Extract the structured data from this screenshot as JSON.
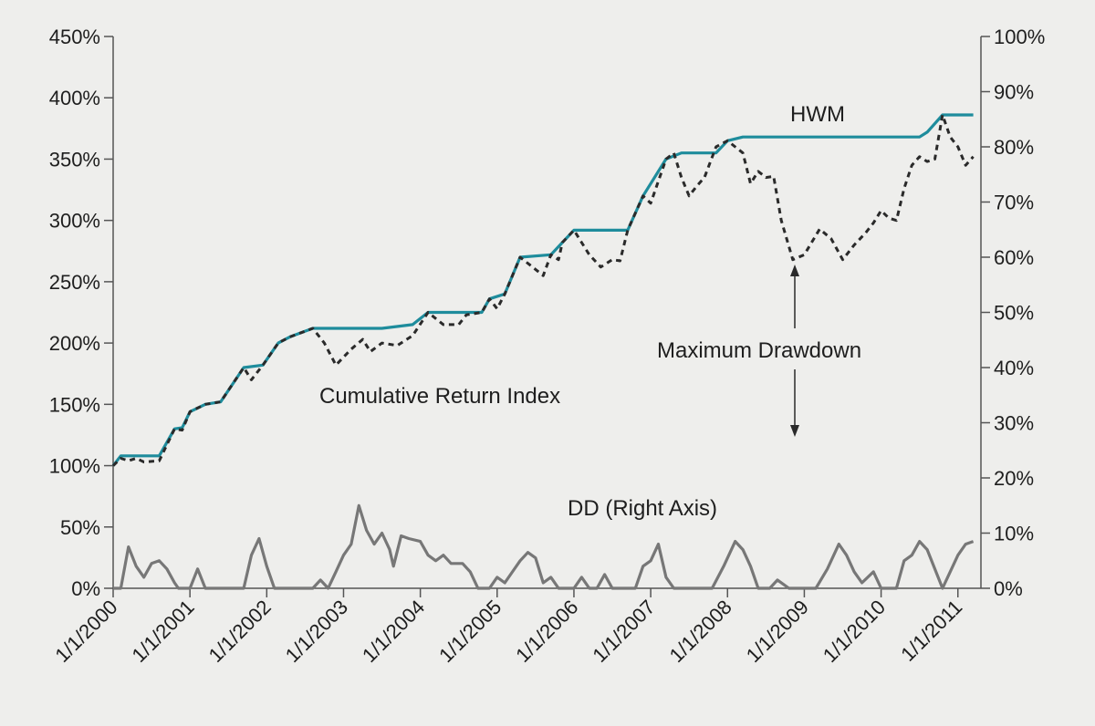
{
  "chart_data": {
    "type": "line",
    "x_tick_labels": [
      "1/1/2000",
      "1/1/2001",
      "1/1/2002",
      "1/1/2003",
      "1/1/2004",
      "1/1/2005",
      "1/1/2006",
      "1/1/2007",
      "1/1/2008",
      "1/1/2009",
      "1/1/2010",
      "1/1/2011"
    ],
    "x_tick_years": [
      2000,
      2001,
      2002,
      2003,
      2004,
      2005,
      2006,
      2007,
      2008,
      2009,
      2010,
      2011
    ],
    "xlim": [
      2000,
      2011.3
    ],
    "left_axis": {
      "ylim": [
        0,
        450
      ],
      "ticks": [
        0,
        50,
        100,
        150,
        200,
        250,
        300,
        350,
        400,
        450
      ],
      "tick_labels": [
        "0%",
        "50%",
        "100%",
        "150%",
        "200%",
        "250%",
        "300%",
        "350%",
        "400%",
        "450%"
      ]
    },
    "right_axis": {
      "ylim": [
        0,
        100
      ],
      "ticks": [
        0,
        10,
        20,
        30,
        40,
        50,
        60,
        70,
        80,
        90,
        100
      ],
      "tick_labels": [
        "0%",
        "10%",
        "20%",
        "30%",
        "40%",
        "50%",
        "60%",
        "70%",
        "80%",
        "90%",
        "100%"
      ]
    },
    "series": [
      {
        "name": "HWM",
        "axis": "left",
        "color": "#1e8c9c",
        "style": "solid",
        "points": [
          [
            2000.0,
            100
          ],
          [
            2000.1,
            108
          ],
          [
            2000.6,
            108
          ],
          [
            2000.8,
            130
          ],
          [
            2000.9,
            131
          ],
          [
            2001.0,
            144
          ],
          [
            2001.2,
            150
          ],
          [
            2001.4,
            152
          ],
          [
            2001.7,
            180
          ],
          [
            2001.95,
            182
          ],
          [
            2002.15,
            200
          ],
          [
            2002.3,
            205
          ],
          [
            2002.6,
            212
          ],
          [
            2003.5,
            212
          ],
          [
            2003.9,
            215
          ],
          [
            2004.1,
            225
          ],
          [
            2004.8,
            225
          ],
          [
            2004.9,
            236
          ],
          [
            2005.1,
            240
          ],
          [
            2005.3,
            270
          ],
          [
            2005.7,
            272
          ],
          [
            2005.85,
            282
          ],
          [
            2006.0,
            292
          ],
          [
            2006.7,
            292
          ],
          [
            2006.9,
            320
          ],
          [
            2007.2,
            350
          ],
          [
            2007.4,
            355
          ],
          [
            2007.85,
            355
          ],
          [
            2008.0,
            365
          ],
          [
            2008.2,
            368
          ],
          [
            2010.5,
            368
          ],
          [
            2010.6,
            372
          ],
          [
            2010.8,
            386
          ],
          [
            2011.2,
            386
          ]
        ]
      },
      {
        "name": "Cumulative Return Index",
        "axis": "left",
        "color": "#2a2a2a",
        "style": "dashed",
        "points": [
          [
            2000.0,
            100
          ],
          [
            2000.1,
            106
          ],
          [
            2000.2,
            104
          ],
          [
            2000.3,
            106
          ],
          [
            2000.4,
            103
          ],
          [
            2000.6,
            104
          ],
          [
            2000.8,
            130
          ],
          [
            2000.9,
            129
          ],
          [
            2001.0,
            144
          ],
          [
            2001.2,
            150
          ],
          [
            2001.4,
            152
          ],
          [
            2001.7,
            180
          ],
          [
            2001.8,
            170
          ],
          [
            2001.95,
            182
          ],
          [
            2002.15,
            200
          ],
          [
            2002.3,
            205
          ],
          [
            2002.6,
            212
          ],
          [
            2002.75,
            200
          ],
          [
            2002.9,
            182
          ],
          [
            2003.1,
            195
          ],
          [
            2003.25,
            203
          ],
          [
            2003.35,
            193
          ],
          [
            2003.5,
            200
          ],
          [
            2003.7,
            198
          ],
          [
            2003.9,
            206
          ],
          [
            2004.1,
            225
          ],
          [
            2004.3,
            215
          ],
          [
            2004.5,
            215
          ],
          [
            2004.6,
            223
          ],
          [
            2004.8,
            225
          ],
          [
            2004.9,
            236
          ],
          [
            2005.0,
            228
          ],
          [
            2005.1,
            240
          ],
          [
            2005.3,
            270
          ],
          [
            2005.5,
            260
          ],
          [
            2005.6,
            255
          ],
          [
            2005.7,
            272
          ],
          [
            2005.8,
            268
          ],
          [
            2005.85,
            282
          ],
          [
            2006.0,
            292
          ],
          [
            2006.2,
            272
          ],
          [
            2006.35,
            262
          ],
          [
            2006.5,
            268
          ],
          [
            2006.6,
            267
          ],
          [
            2006.7,
            292
          ],
          [
            2006.9,
            320
          ],
          [
            2007.0,
            314
          ],
          [
            2007.2,
            350
          ],
          [
            2007.3,
            355
          ],
          [
            2007.4,
            335
          ],
          [
            2007.5,
            320
          ],
          [
            2007.6,
            328
          ],
          [
            2007.7,
            335
          ],
          [
            2007.85,
            360
          ],
          [
            2008.0,
            365
          ],
          [
            2008.2,
            355
          ],
          [
            2008.3,
            330
          ],
          [
            2008.4,
            340
          ],
          [
            2008.5,
            335
          ],
          [
            2008.6,
            336
          ],
          [
            2008.7,
            300
          ],
          [
            2008.85,
            268
          ],
          [
            2009.0,
            272
          ],
          [
            2009.2,
            293
          ],
          [
            2009.35,
            285
          ],
          [
            2009.5,
            268
          ],
          [
            2009.65,
            280
          ],
          [
            2009.8,
            290
          ],
          [
            2009.9,
            298
          ],
          [
            2010.0,
            308
          ],
          [
            2010.1,
            302
          ],
          [
            2010.2,
            300
          ],
          [
            2010.3,
            326
          ],
          [
            2010.4,
            345
          ],
          [
            2010.5,
            352
          ],
          [
            2010.6,
            348
          ],
          [
            2010.7,
            350
          ],
          [
            2010.8,
            386
          ],
          [
            2010.9,
            368
          ],
          [
            2011.0,
            360
          ],
          [
            2011.1,
            345
          ],
          [
            2011.2,
            352
          ]
        ]
      },
      {
        "name": "DD (Right Axis)",
        "axis": "right",
        "color": "#777777",
        "style": "solid",
        "points": [
          [
            2000.0,
            0
          ],
          [
            2000.1,
            0
          ],
          [
            2000.2,
            7.5
          ],
          [
            2000.3,
            4
          ],
          [
            2000.4,
            2
          ],
          [
            2000.5,
            4.5
          ],
          [
            2000.6,
            5
          ],
          [
            2000.7,
            3.5
          ],
          [
            2000.8,
            1
          ],
          [
            2000.85,
            0
          ],
          [
            2001.0,
            0
          ],
          [
            2001.1,
            3.5
          ],
          [
            2001.2,
            0
          ],
          [
            2001.7,
            0
          ],
          [
            2001.8,
            6
          ],
          [
            2001.9,
            9
          ],
          [
            2002.0,
            4
          ],
          [
            2002.1,
            0
          ],
          [
            2002.6,
            0
          ],
          [
            2002.7,
            1.5
          ],
          [
            2002.8,
            0
          ],
          [
            2002.9,
            3
          ],
          [
            2003.0,
            6
          ],
          [
            2003.1,
            8
          ],
          [
            2003.2,
            15
          ],
          [
            2003.3,
            10.5
          ],
          [
            2003.4,
            8
          ],
          [
            2003.5,
            10
          ],
          [
            2003.6,
            7
          ],
          [
            2003.65,
            4
          ],
          [
            2003.75,
            9.5
          ],
          [
            2003.85,
            9
          ],
          [
            2004.0,
            8.5
          ],
          [
            2004.1,
            6
          ],
          [
            2004.2,
            5
          ],
          [
            2004.3,
            6
          ],
          [
            2004.4,
            4.5
          ],
          [
            2004.55,
            4.5
          ],
          [
            2004.65,
            3
          ],
          [
            2004.75,
            0
          ],
          [
            2004.9,
            0
          ],
          [
            2005.0,
            2
          ],
          [
            2005.1,
            1
          ],
          [
            2005.2,
            3
          ],
          [
            2005.3,
            5
          ],
          [
            2005.4,
            6.5
          ],
          [
            2005.5,
            5.5
          ],
          [
            2005.6,
            1
          ],
          [
            2005.7,
            2
          ],
          [
            2005.8,
            0
          ],
          [
            2006.0,
            0
          ],
          [
            2006.1,
            2
          ],
          [
            2006.2,
            0
          ],
          [
            2006.3,
            0
          ],
          [
            2006.4,
            2.5
          ],
          [
            2006.5,
            0
          ],
          [
            2006.8,
            0
          ],
          [
            2006.9,
            4
          ],
          [
            2007.0,
            5
          ],
          [
            2007.1,
            8
          ],
          [
            2007.2,
            2
          ],
          [
            2007.3,
            0
          ],
          [
            2007.8,
            0
          ],
          [
            2007.95,
            4
          ],
          [
            2008.1,
            8.5
          ],
          [
            2008.2,
            7
          ],
          [
            2008.3,
            4
          ],
          [
            2008.4,
            0
          ],
          [
            2008.55,
            0
          ],
          [
            2008.65,
            1.5
          ],
          [
            2008.8,
            0
          ],
          [
            2009.15,
            0
          ],
          [
            2009.3,
            3.5
          ],
          [
            2009.45,
            8
          ],
          [
            2009.55,
            6
          ],
          [
            2009.65,
            3
          ],
          [
            2009.75,
            1
          ],
          [
            2009.9,
            3
          ],
          [
            2010.0,
            0
          ],
          [
            2010.2,
            0
          ],
          [
            2010.3,
            5
          ],
          [
            2010.4,
            6
          ],
          [
            2010.5,
            8.5
          ],
          [
            2010.6,
            7
          ],
          [
            2010.8,
            0
          ],
          [
            2011.0,
            6
          ],
          [
            2011.1,
            8
          ],
          [
            2011.2,
            8.5
          ]
        ]
      }
    ],
    "annotations": {
      "hwm": "HWM",
      "cumulative": "Cumulative Return Index",
      "max_dd": "Maximum Drawdown",
      "dd": "DD (Right Axis)"
    },
    "grid": false,
    "legend": "none"
  }
}
